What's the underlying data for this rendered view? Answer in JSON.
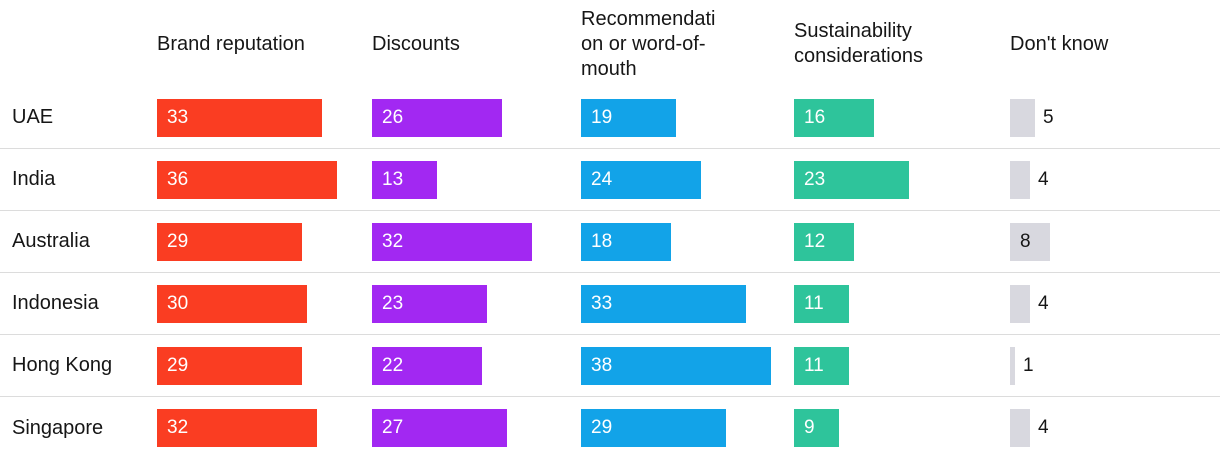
{
  "chart_data": {
    "type": "bar",
    "orientation": "horizontal",
    "title": "",
    "xlabel": "",
    "ylabel": "",
    "xlim": [
      0,
      40
    ],
    "grid": false,
    "legend_position": "column-headers",
    "categories": [
      "UAE",
      "India",
      "Australia",
      "Indonesia",
      "Hong Kong",
      "Singapore"
    ],
    "series": [
      {
        "name": "Brand reputation",
        "color": "#FA3D22",
        "label_color": "#ffffff",
        "values": [
          33,
          36,
          29,
          30,
          29,
          32
        ]
      },
      {
        "name": "Discounts",
        "color": "#A228F2",
        "label_color": "#ffffff",
        "values": [
          26,
          13,
          32,
          23,
          22,
          27
        ]
      },
      {
        "name": "Recommendation or word-of-mouth",
        "color": "#12A3E8",
        "label_color": "#ffffff",
        "values": [
          19,
          24,
          18,
          33,
          38,
          29
        ]
      },
      {
        "name": "Sustainability considerations",
        "color": "#2EC49B",
        "label_color": "#1a1a1a",
        "values": [
          16,
          23,
          12,
          11,
          11,
          9
        ]
      },
      {
        "name": "Don't know",
        "color": "#D8D8DF",
        "label_color": "#161616",
        "values": [
          5,
          4,
          8,
          4,
          1,
          4
        ]
      }
    ],
    "value_labels_shown": true,
    "row_separator_color": "#dcdcdc"
  }
}
